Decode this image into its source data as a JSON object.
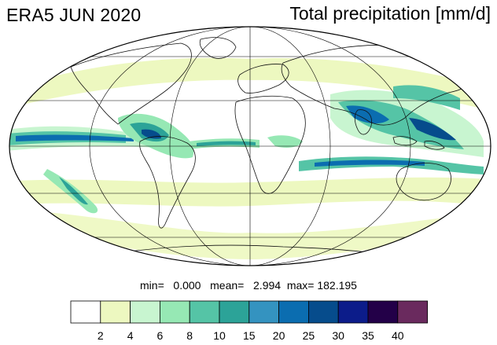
{
  "header": {
    "title_left": "ERA5 JUN 2020",
    "title_right": "Total precipitation [mm/d]"
  },
  "stats": {
    "min_label": "min=",
    "min_value": "0.000",
    "mean_label": "mean=",
    "mean_value": "2.994",
    "max_label": "max=",
    "max_value": "182.195"
  },
  "colorbar": {
    "colors": [
      "#ffffff",
      "#edf8c0",
      "#c8f5d0",
      "#96e8b4",
      "#55c4a6",
      "#2ca398",
      "#3493c0",
      "#0b6db0",
      "#064c8c",
      "#0c1c8a",
      "#230048",
      "#6a2a5e"
    ],
    "tick_labels": [
      "2",
      "4",
      "6",
      "8",
      "10",
      "15",
      "20",
      "25",
      "30",
      "35",
      "40"
    ]
  }
}
